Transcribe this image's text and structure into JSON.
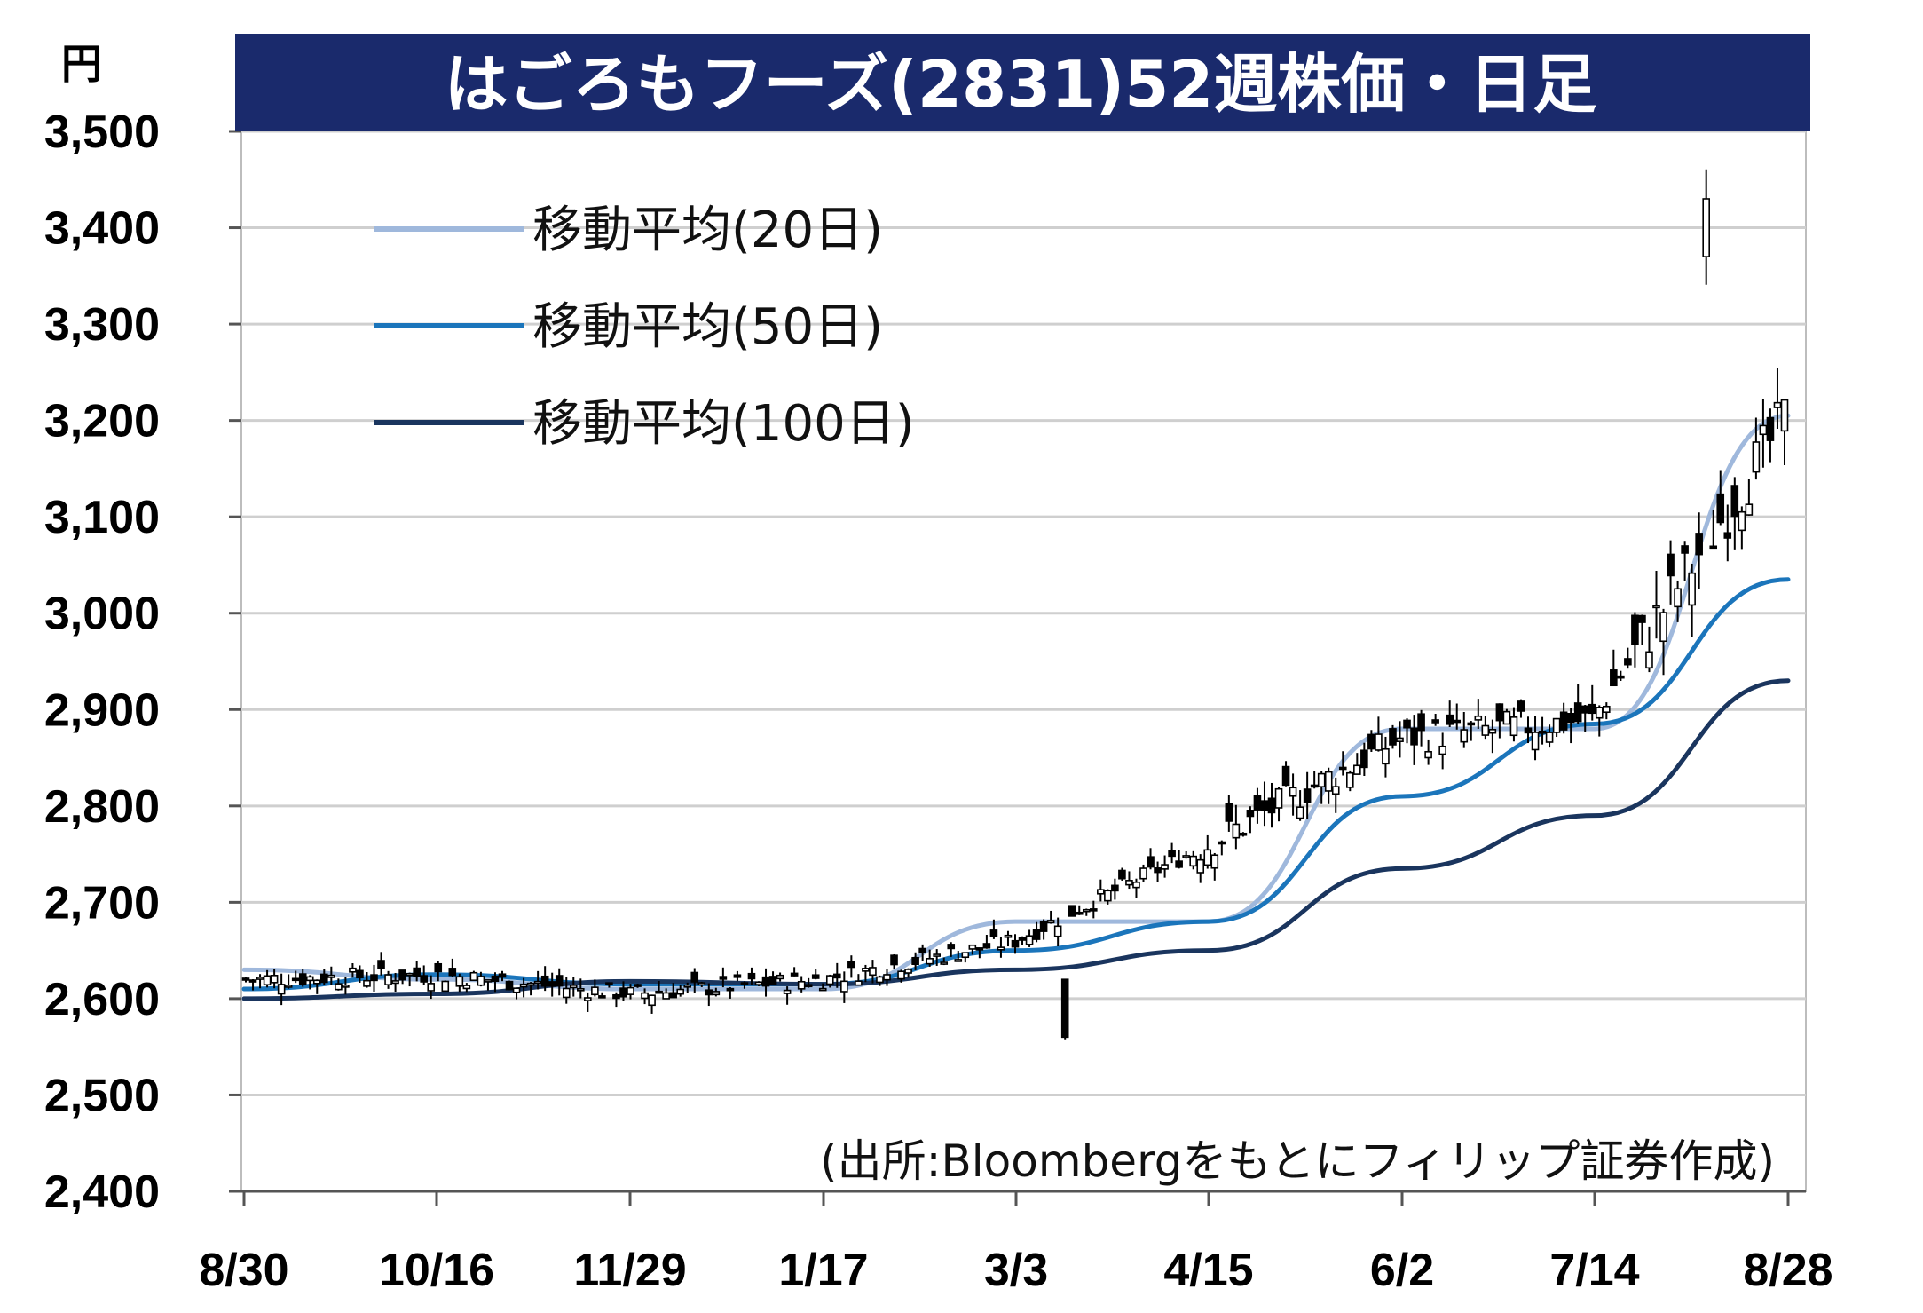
{
  "chart_data": {
    "type": "candlestick",
    "title": "はごろもフーズ(2831)52週株価・日足",
    "unit_label": "円",
    "source": "(出所:Bloombergをもとにフィリップ証券作成)",
    "ylim": [
      2400,
      3500
    ],
    "yticks": [
      2400,
      2500,
      2600,
      2700,
      2800,
      2900,
      3000,
      3100,
      3200,
      3300,
      3400,
      3500
    ],
    "ytick_labels": [
      "2,400",
      "2,500",
      "2,600",
      "2,700",
      "2,800",
      "2,900",
      "3,000",
      "3,100",
      "3,200",
      "3,300",
      "3,400",
      "3,500"
    ],
    "x_dates": [
      "8/30",
      "10/16",
      "11/29",
      "1/17",
      "3/3",
      "4/15",
      "6/2",
      "7/14",
      "8/28"
    ],
    "grid": true,
    "legend_position": "top-left",
    "legend": [
      {
        "name": "移動平均(20日)",
        "color": "#9fb8dc"
      },
      {
        "name": "移動平均(50日)",
        "color": "#1b75bb"
      },
      {
        "name": "移動平均(100日)",
        "color": "#1a355e"
      }
    ],
    "key_points": [
      {
        "date": "8/30",
        "close": 2620
      },
      {
        "date": "10/16",
        "close": 2625
      },
      {
        "date": "11/29",
        "close": 2605
      },
      {
        "date": "1/17",
        "close": 2620
      },
      {
        "date": "3/3",
        "close": 2660
      },
      {
        "date": "4/15",
        "close": 2760
      },
      {
        "date": "6/2",
        "close": 2870
      },
      {
        "date": "7/14",
        "close": 2890
      },
      {
        "date": "8/28",
        "close": 3200
      }
    ],
    "period_high": 3450,
    "period_low": 2540,
    "series": [
      {
        "name": "移動平均(20日)",
        "x": [
          "8/30",
          "10/16",
          "11/29",
          "1/17",
          "3/3",
          "4/15",
          "6/2",
          "7/14",
          "8/28"
        ],
        "values": [
          2630,
          2620,
          2610,
          2610,
          2680,
          2680,
          2880,
          2880,
          3205
        ]
      },
      {
        "name": "移動平均(50日)",
        "x": [
          "8/30",
          "10/16",
          "11/29",
          "1/17",
          "3/3",
          "4/15",
          "6/2",
          "7/14",
          "8/28"
        ],
        "values": [
          2610,
          2625,
          2615,
          2615,
          2650,
          2680,
          2810,
          2885,
          3035
        ]
      },
      {
        "name": "移動平均(100日)",
        "x": [
          "8/30",
          "10/16",
          "11/29",
          "1/17",
          "3/3",
          "4/15",
          "6/2",
          "7/14",
          "8/28"
        ],
        "values": [
          2600,
          2605,
          2618,
          2615,
          2630,
          2650,
          2735,
          2790,
          2930
        ]
      }
    ]
  },
  "colors": {
    "title_bg": "#1a2a6c",
    "candle": "#000000",
    "grid": "#cfcfcf",
    "plot_border": "#bdbdbd",
    "ma20": "#9fb8dc",
    "ma50": "#1b75bb",
    "ma100": "#1a355e"
  }
}
